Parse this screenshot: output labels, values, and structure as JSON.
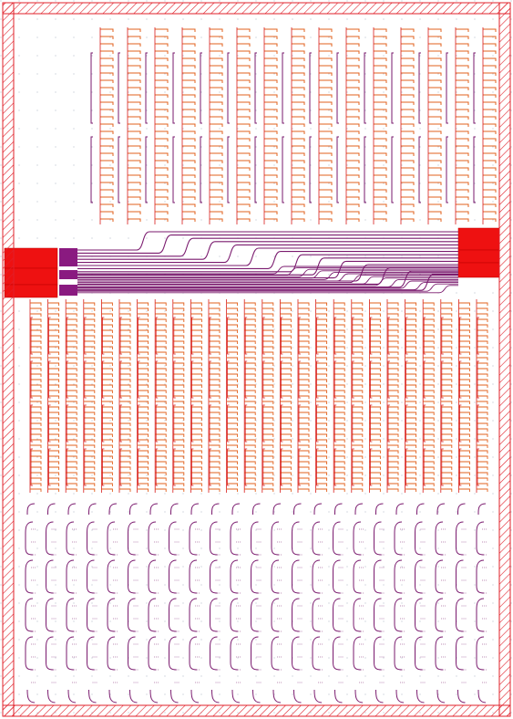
{
  "colors": {
    "background": "#ffffff",
    "grid_dots": "#b8c0cc",
    "frame": "#e0202a",
    "frame_hatch": "#e0202a",
    "trace_orange": "#e2601c",
    "trace_red": "#d81c1c",
    "trace_purple": "#7a1a6e",
    "pad_red": "#ee1111",
    "pad_purple": "#8a1a80"
  },
  "layout_view": {
    "upper_array": {
      "columns": 15,
      "rows": 2,
      "stub_layer": "orange",
      "bus_layer": "purple"
    },
    "routing_channel": {
      "traces": 14,
      "left_pad_groups": 3,
      "right_pad_groups": 3,
      "layer": "purple"
    },
    "middle_array": {
      "columns": 26,
      "rows": 4,
      "layer": "orange"
    },
    "lower_array": {
      "columns": 23,
      "rows": 4,
      "layer": "purple"
    }
  }
}
